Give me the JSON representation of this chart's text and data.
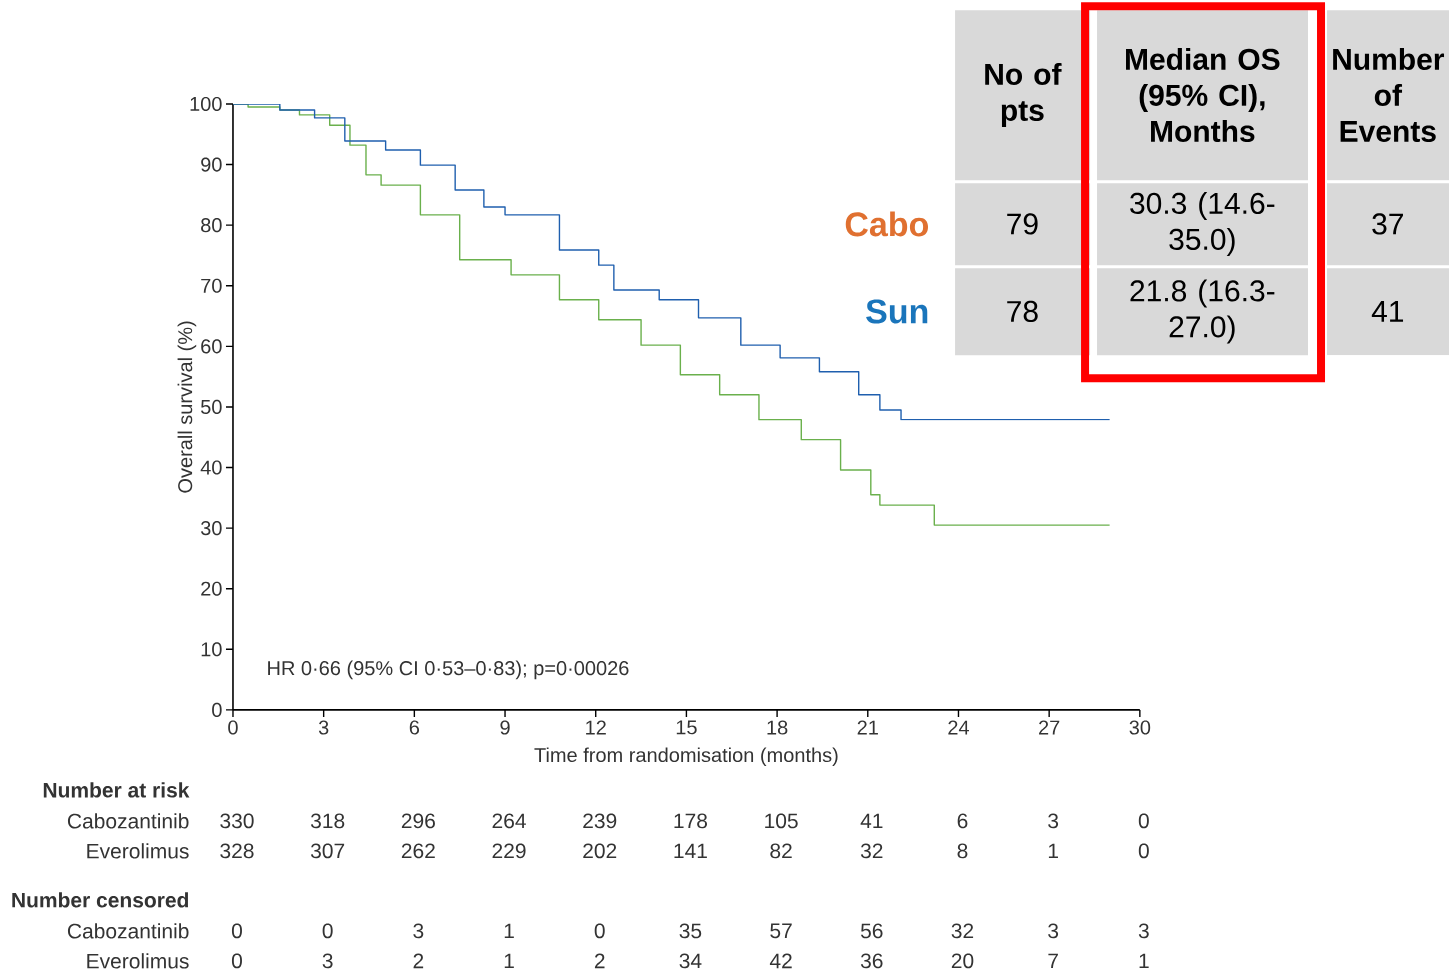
{
  "chart_data": {
    "type": "step",
    "xlabel": "Time from randomisation (months)",
    "ylabel": "Overall survival (%)",
    "xlim": [
      0,
      30
    ],
    "xticks": [
      0,
      3,
      6,
      9,
      12,
      15,
      18,
      21,
      24,
      27,
      30
    ],
    "ylim": [
      0,
      100
    ],
    "yticks": [
      0,
      10,
      20,
      30,
      40,
      50,
      60,
      70,
      80,
      90,
      100
    ],
    "series": [
      {
        "color": "#1f5fae",
        "x": [
          0,
          1.3,
          1.55,
          2.3,
          2.7,
          3.7,
          4.4,
          5.05,
          6.2,
          7.35,
          8.3,
          9,
          10.8,
          12.1,
          12.6,
          14.1,
          15.4,
          16.8,
          18.1,
          19.4,
          20.7,
          21.4,
          22.1,
          29
        ],
        "values": [
          100,
          100,
          99,
          99,
          97.7,
          93.9,
          93.9,
          92.4,
          89.9,
          85.8,
          83,
          81.7,
          75.9,
          73.4,
          69.3,
          67.7,
          64.7,
          60.2,
          58.1,
          55.8,
          52,
          49.5,
          47.9,
          47.9
        ]
      },
      {
        "color": "#6ab04c",
        "x": [
          0,
          0.5,
          1.55,
          2.2,
          3.2,
          3.87,
          4.4,
          4.9,
          6.2,
          7.5,
          9.2,
          10.8,
          12.1,
          13.5,
          14.8,
          16.1,
          17.4,
          18.8,
          20.1,
          21.1,
          21.4,
          23.1,
          23.2,
          29
        ],
        "values": [
          100,
          99.5,
          99,
          98.2,
          96.5,
          93.2,
          88.3,
          86.6,
          81.7,
          74.3,
          71.8,
          67.7,
          64.4,
          60.2,
          55.3,
          52,
          47.9,
          44.6,
          39.6,
          35.5,
          33.8,
          33.8,
          30.5,
          30.5
        ]
      }
    ],
    "annotations": [
      "HR 0·66 (95% CI 0·53–0·83); p=0·00026",
      "Number at risk",
      "Cabozantinib",
      "330",
      "318",
      "296",
      "264",
      "239",
      "178",
      "105",
      "41",
      "6",
      "3",
      "0",
      "Everolimus",
      "328",
      "307",
      "262",
      "229",
      "202",
      "141",
      "82",
      "32",
      "8",
      "1",
      "0",
      "Number censored",
      "Cabozantinib",
      "0",
      "0",
      "3",
      "1",
      "0",
      "35",
      "57",
      "56",
      "32",
      "3",
      "3",
      "Everolimus",
      "0",
      "3",
      "2",
      "1",
      "2",
      "34",
      "42",
      "36",
      "20",
      "7",
      "1",
      "No of pts",
      "Median OS (95% CI), Months",
      "Number of Events",
      "Cabo",
      "79",
      "30.3 (14.6-35.0)",
      "37",
      "Sun",
      "78",
      "21.8 (16.3-27.0)",
      "41"
    ]
  }
}
